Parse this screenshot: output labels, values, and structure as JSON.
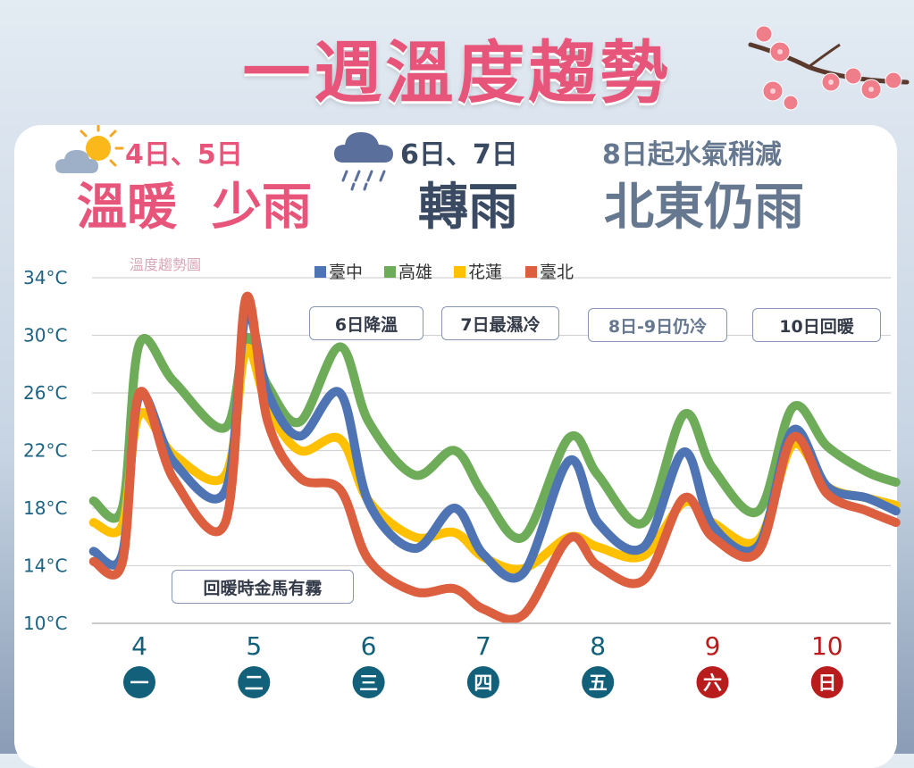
{
  "title": "一週溫度趨勢",
  "summary": [
    {
      "dates": "4日、5日",
      "desc": "溫暖  少雨",
      "icon": "sun-cloud-icon"
    },
    {
      "dates": "6日、7日",
      "desc": "轉雨",
      "icon": "rain-cloud-icon"
    },
    {
      "dates": "8日起水氣稍減",
      "desc": "北東仍雨"
    }
  ],
  "annotations": [
    "6日降溫",
    "7日最濕冷",
    "8日-9日仍冷",
    "10日回暖",
    "回暖時金馬有霧"
  ],
  "colors": {
    "title": "#e8557a",
    "taichung": "#4f74b4",
    "kaohsiung": "#6fac5a",
    "hualien": "#ffc000",
    "taipei": "#dc5f3f",
    "weekday": "#12607a",
    "weekend": "#b81c1c"
  },
  "chart_data": {
    "type": "line",
    "title": "溫度趨勢圖",
    "xlabel": "",
    "ylabel": "",
    "yticks": [
      "34°C",
      "30°C",
      "26°C",
      "22°C",
      "18°C",
      "14°C",
      "10°C"
    ],
    "ylim": [
      10,
      34
    ],
    "grid": true,
    "legend_position": "top",
    "categories": [
      "4",
      "5",
      "6",
      "7",
      "8",
      "9",
      "10"
    ],
    "weekdays": [
      "一",
      "二",
      "三",
      "四",
      "五",
      "六",
      "日"
    ],
    "x": [
      3.6,
      3.85,
      4.0,
      4.3,
      4.75,
      4.93,
      5.12,
      5.4,
      5.75,
      6.0,
      6.4,
      6.75,
      7.0,
      7.35,
      7.75,
      8.0,
      8.4,
      8.75,
      9.0,
      9.4,
      9.7,
      10.0,
      10.35,
      10.6
    ],
    "series": [
      {
        "name": "臺中",
        "values": [
          15,
          14.8,
          25.8,
          21.2,
          19.2,
          31.5,
          26,
          23,
          26,
          18.4,
          15.2,
          18,
          14.8,
          13.5,
          21.3,
          17,
          15.3,
          21.9,
          16.8,
          15.4,
          23.4,
          19.5,
          18.7,
          17.8
        ]
      },
      {
        "name": "高雄",
        "values": [
          18.5,
          18,
          29.4,
          26.8,
          23.6,
          29.8,
          26.5,
          24,
          29.2,
          24,
          20.3,
          22,
          19,
          16,
          22.9,
          20.3,
          17,
          24.5,
          20.8,
          17.8,
          25,
          22.3,
          20.5,
          19.8
        ]
      },
      {
        "name": "花蓮",
        "values": [
          17,
          16.8,
          24.5,
          21.7,
          20.3,
          29,
          25,
          22,
          22.8,
          18.5,
          16,
          16.3,
          14.6,
          13.8,
          16,
          15.3,
          14.7,
          18.4,
          17,
          15.8,
          22.4,
          19.5,
          18.7,
          18.2
        ]
      },
      {
        "name": "臺北",
        "values": [
          14.3,
          14.2,
          26,
          20,
          17,
          32.6,
          24,
          20.1,
          19.3,
          14.4,
          12.2,
          12.4,
          11,
          10.6,
          15.9,
          14,
          13,
          18.7,
          16,
          15,
          22.9,
          19,
          17.8,
          17
        ]
      }
    ]
  }
}
